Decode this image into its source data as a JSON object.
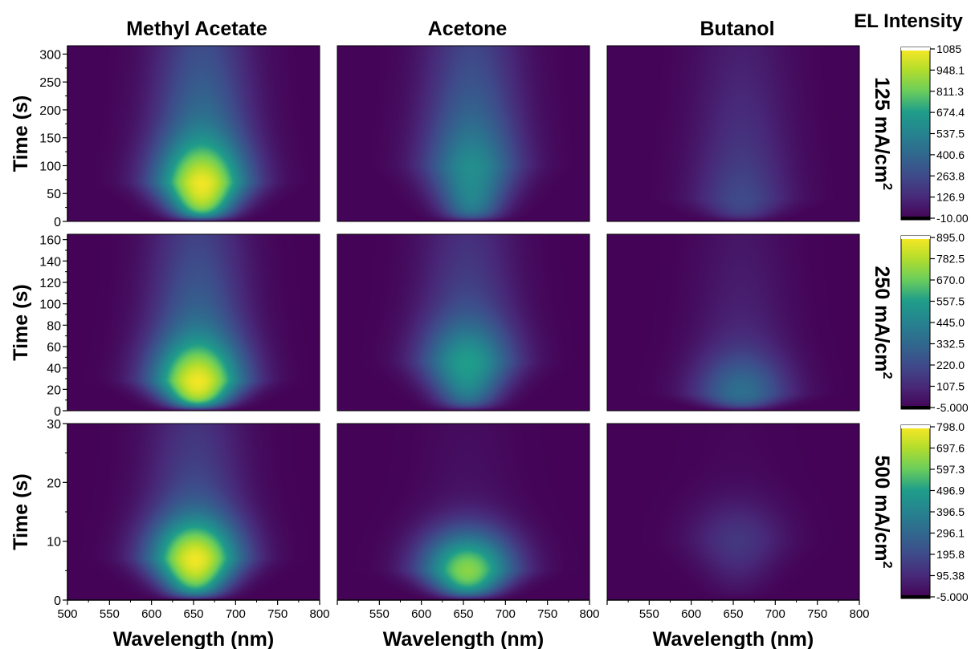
{
  "chart_data": {
    "type": "heatmap",
    "colorbar_title": "EL Intensity",
    "columns": [
      "Methyl Acetate",
      "Acetone",
      "Butanol"
    ],
    "xlabel": "Wavelength (nm)",
    "xlim": [
      500,
      800
    ],
    "x_ticks": [
      "500",
      "550",
      "600",
      "650",
      "700",
      "750",
      "800"
    ],
    "ylabel": "Time (s)",
    "colormap": [
      "#440154",
      "#482777",
      "#3f4a8a",
      "#31678e",
      "#26838f",
      "#1f9d8a",
      "#6cce5a",
      "#b6de2b",
      "#fee825"
    ],
    "rows": [
      {
        "label": "125 mA/cm",
        "superscript": "2",
        "ylim": [
          0,
          315
        ],
        "y_ticks": [
          "0",
          "50",
          "100",
          "150",
          "200",
          "250",
          "300"
        ],
        "colorbar": {
          "min": -10,
          "max": 1085,
          "tick_labels": [
            "1085",
            "948.1",
            "811.3",
            "674.4",
            "537.5",
            "400.6",
            "263.8",
            "126.9",
            "-10.00"
          ]
        },
        "panels": [
          {
            "column": "Methyl Acetate",
            "peak_wavelength": 660,
            "peak_time": 70,
            "peak_intensity": 1060,
            "tail_intensity": 650
          },
          {
            "column": "Acetone",
            "peak_wavelength": 660,
            "peak_time": 100,
            "peak_intensity": 600,
            "tail_intensity": 520
          },
          {
            "column": "Butanol",
            "peak_wavelength": 660,
            "peak_time": 40,
            "peak_intensity": 270,
            "tail_intensity": 250
          }
        ]
      },
      {
        "label": "250 mA/cm",
        "superscript": "2",
        "ylim": [
          0,
          165
        ],
        "y_ticks": [
          "0",
          "20",
          "40",
          "60",
          "80",
          "100",
          "120",
          "140",
          "160"
        ],
        "colorbar": {
          "min": -5,
          "max": 895,
          "tick_labels": [
            "895.0",
            "782.5",
            "670.0",
            "557.5",
            "445.0",
            "332.5",
            "220.0",
            "107.5",
            "-5.000"
          ]
        },
        "panels": [
          {
            "column": "Methyl Acetate",
            "peak_wavelength": 655,
            "peak_time": 28,
            "peak_intensity": 880,
            "tail_intensity": 480
          },
          {
            "column": "Acetone",
            "peak_wavelength": 655,
            "peak_time": 45,
            "peak_intensity": 560,
            "tail_intensity": 300
          },
          {
            "column": "Butanol",
            "peak_wavelength": 660,
            "peak_time": 15,
            "peak_intensity": 380,
            "tail_intensity": 150
          }
        ]
      },
      {
        "label": "500 mA/cm",
        "superscript": "2",
        "ylim": [
          0,
          30
        ],
        "y_ticks": [
          "0",
          "10",
          "20",
          "30"
        ],
        "colorbar": {
          "min": -5,
          "max": 798,
          "tick_labels": [
            "798.0",
            "697.6",
            "597.3",
            "496.9",
            "396.5",
            "296.1",
            "195.8",
            "95.38",
            "-5.000"
          ]
        },
        "panels": [
          {
            "column": "Methyl Acetate",
            "peak_wavelength": 652,
            "peak_time": 7,
            "peak_intensity": 780,
            "tail_intensity": 300
          },
          {
            "column": "Acetone",
            "peak_wavelength": 655,
            "peak_time": 5,
            "peak_intensity": 640,
            "tail_intensity": 60
          },
          {
            "column": "Butanol",
            "peak_wavelength": 655,
            "peak_time": 10,
            "peak_intensity": 140,
            "tail_intensity": 20
          }
        ]
      }
    ]
  }
}
